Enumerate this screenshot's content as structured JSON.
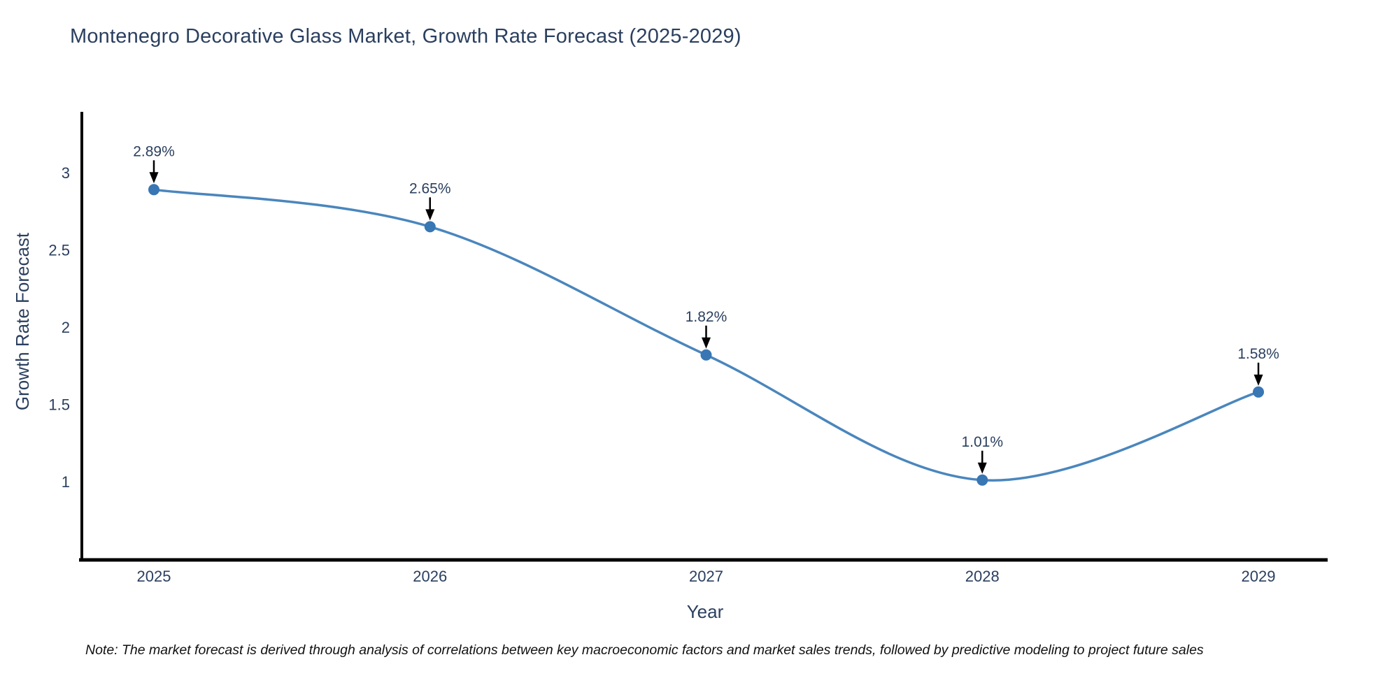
{
  "title": "Montenegro Decorative Glass Market, Growth Rate Forecast (2025-2029)",
  "footnote": "Note: The market forecast is derived through analysis of correlations between key macroeconomic factors and market sales trends, followed by predictive modeling to project future sales",
  "chart_data": {
    "type": "line",
    "line_shape": "spline",
    "title": "Montenegro Decorative Glass Market, Growth Rate Forecast (2025-2029)",
    "xlabel": "Year",
    "ylabel": "Growth Rate Forecast",
    "x": [
      2025,
      2026,
      2027,
      2028,
      2029
    ],
    "y": [
      2.89,
      2.65,
      1.82,
      1.01,
      1.58
    ],
    "point_labels": [
      "2.89%",
      "2.65%",
      "1.82%",
      "1.01%",
      "1.58%"
    ],
    "xticks": [
      "2025",
      "2026",
      "2027",
      "2028",
      "2029"
    ],
    "yticks": [
      3,
      2.5,
      2,
      1.5,
      1
    ],
    "ylim": [
      0.5,
      3.4
    ],
    "grid": false,
    "legend": false,
    "annotation_arrows": true,
    "colors": {
      "line": "#4a86bd",
      "marker": "#3876b4",
      "axis": "#000000",
      "text": "#2a3f5f",
      "annotation_text": "#2a3f5f",
      "arrow": "#000000"
    }
  }
}
